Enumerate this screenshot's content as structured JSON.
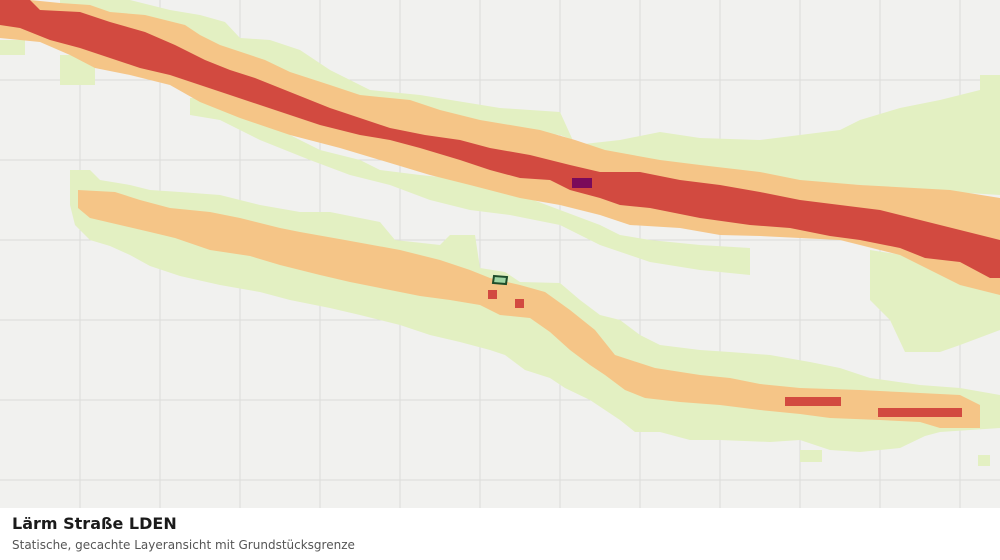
{
  "caption": {
    "title": "Lärm Straße LDEN",
    "subtitle": "Statische, gecachte Layeransicht mit Grundstücksgrenze"
  },
  "map": {
    "colors": {
      "background": "#f1f1ef",
      "grid": "#dcdcda",
      "band_low": "#e3f0c2",
      "band_mid": "#f5c587",
      "band_high": "#d24a40",
      "band_max": "#7a0a5a",
      "parcel_fill": "#9fd6a4",
      "parcel_stroke": "#1d4d2a"
    }
  }
}
